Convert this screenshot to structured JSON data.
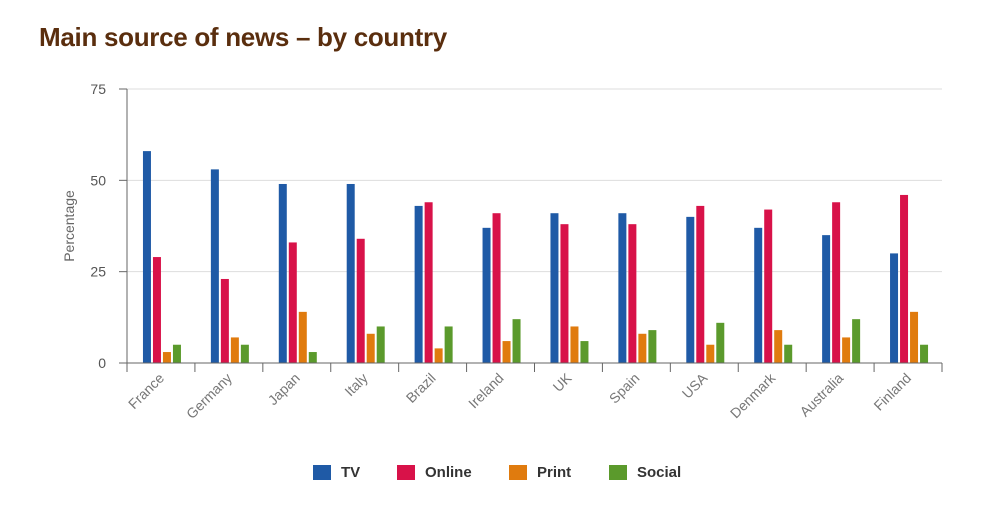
{
  "chart_data": {
    "type": "bar",
    "title": "Main source of news – by country",
    "xlabel": "",
    "ylabel": "Percentage",
    "ylim": [
      0,
      75
    ],
    "yticks": [
      "0",
      "25",
      "50",
      "75"
    ],
    "grid": true,
    "legend_position": "bottom",
    "categories": [
      "France",
      "Germany",
      "Japan",
      "Italy",
      "Brazil",
      "Ireland",
      "UK",
      "Spain",
      "USA",
      "Denmark",
      "Australia",
      "Finland"
    ],
    "series": [
      {
        "name": "TV",
        "color": "#1f5aa6",
        "values": [
          58,
          53,
          49,
          49,
          43,
          37,
          41,
          41,
          40,
          37,
          35,
          30
        ]
      },
      {
        "name": "Online",
        "color": "#d81249",
        "values": [
          29,
          23,
          33,
          34,
          44,
          41,
          38,
          38,
          43,
          42,
          44,
          46
        ]
      },
      {
        "name": "Print",
        "color": "#e07b0e",
        "values": [
          3,
          7,
          14,
          8,
          4,
          6,
          10,
          8,
          5,
          9,
          7,
          14
        ]
      },
      {
        "name": "Social",
        "color": "#5b9a2c",
        "values": [
          5,
          5,
          3,
          10,
          10,
          12,
          6,
          9,
          11,
          5,
          12,
          5
        ]
      }
    ]
  }
}
